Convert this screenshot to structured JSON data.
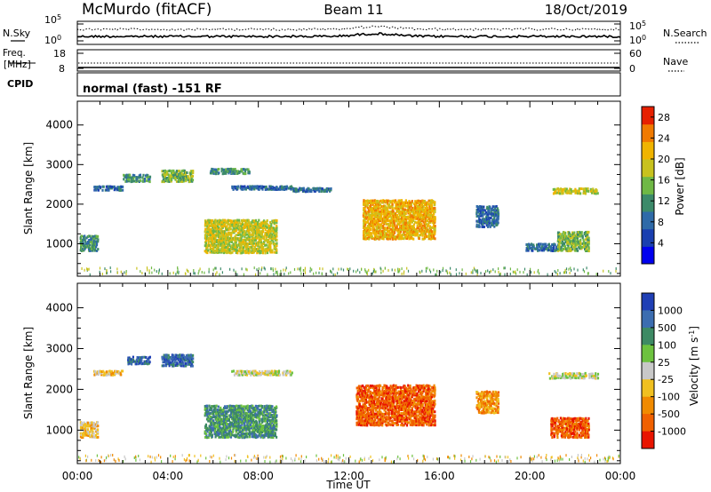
{
  "header": {
    "station": "McMurdo (fitACF)",
    "beam": "Beam 11",
    "date": "18/Oct/2019"
  },
  "noise_panel": {
    "left_label": "N.Sky",
    "right_label": "N.Search",
    "left_ticks": [
      "10^5",
      "10^0"
    ],
    "right_ticks": [
      "10^5",
      "10^0"
    ]
  },
  "freq_panel": {
    "left_label_line1": "Freq.",
    "left_label_line2": "[MHz]",
    "left_ticks": [
      "18",
      "8"
    ],
    "right_label": "Nave",
    "right_ticks": [
      "60",
      "0"
    ]
  },
  "cpid_panel": {
    "label": "CPID",
    "mode_text": "normal (fast) -151 RF"
  },
  "x_axis": {
    "label": "Time UT",
    "ticks": [
      "00:00",
      "04:00",
      "08:00",
      "12:00",
      "16:00",
      "20:00",
      "00:00"
    ]
  },
  "chart_data": [
    {
      "type": "heatmap",
      "name": "power",
      "ylabel": "Slant Range [km]",
      "yticks": [
        "1000",
        "2000",
        "3000",
        "4000"
      ],
      "ylim": [
        180,
        4600
      ],
      "xlim_hours": [
        0,
        24
      ],
      "colorbar": {
        "label": "Power [dB]",
        "ticks": [
          "4",
          "8",
          "12",
          "16",
          "20",
          "24",
          "28"
        ],
        "range": [
          0,
          30
        ],
        "colors": [
          "#0000ee",
          "#1a3fb0",
          "#2f6aa8",
          "#3c8a6a",
          "#6fb845",
          "#c8c21e",
          "#f0b400",
          "#f07a00",
          "#e62000"
        ]
      },
      "regions": [
        {
          "t": [
            0.1,
            0.9
          ],
          "r": [
            850,
            1250
          ],
          "level": 3
        },
        {
          "t": [
            0.7,
            2.0
          ],
          "r": [
            2380,
            2500
          ],
          "level": 2
        },
        {
          "t": [
            2.0,
            3.2
          ],
          "r": [
            2600,
            2800
          ],
          "level": 3
        },
        {
          "t": [
            3.7,
            5.1
          ],
          "r": [
            2600,
            2900
          ],
          "level": 4
        },
        {
          "t": [
            5.6,
            8.8
          ],
          "r": [
            800,
            1650
          ],
          "level": 5
        },
        {
          "t": [
            5.8,
            7.6
          ],
          "r": [
            2800,
            2950
          ],
          "level": 3
        },
        {
          "t": [
            6.8,
            9.5
          ],
          "r": [
            2400,
            2500
          ],
          "level": 2
        },
        {
          "t": [
            9.5,
            11.2
          ],
          "r": [
            2350,
            2450
          ],
          "level": 2
        },
        {
          "t": [
            12.6,
            15.8
          ],
          "r": [
            1150,
            2150
          ],
          "level": 6
        },
        {
          "t": [
            17.6,
            18.6
          ],
          "r": [
            1450,
            2000
          ],
          "level": 2
        },
        {
          "t": [
            19.8,
            21.2
          ],
          "r": [
            850,
            1050
          ],
          "level": 2
        },
        {
          "t": [
            21.0,
            23.0
          ],
          "r": [
            2300,
            2450
          ],
          "level": 5
        },
        {
          "t": [
            21.2,
            22.6
          ],
          "r": [
            850,
            1350
          ],
          "level": 4
        }
      ]
    },
    {
      "type": "heatmap",
      "name": "velocity",
      "ylabel": "Slant Range [km]",
      "yticks": [
        "1000",
        "2000",
        "3000",
        "4000"
      ],
      "ylim": [
        180,
        4600
      ],
      "xlim_hours": [
        0,
        24
      ],
      "colorbar": {
        "label": "Velocity [m s^-1]",
        "ticks": [
          "1000",
          "500",
          "100",
          "25",
          "-25",
          "-100",
          "-500",
          "-1000"
        ],
        "colors": [
          "#1f3fb5",
          "#3c6db0",
          "#3d8a64",
          "#6dc23f",
          "#c8c8c8",
          "#f0c020",
          "#f08a00",
          "#f06000",
          "#e81400"
        ]
      },
      "regions": [
        {
          "t": [
            0.1,
            0.9
          ],
          "r": [
            850,
            1250
          ],
          "level": 5
        },
        {
          "t": [
            0.7,
            2.0
          ],
          "r": [
            2380,
            2500
          ],
          "level": 5
        },
        {
          "t": [
            2.2,
            3.2
          ],
          "r": [
            2650,
            2850
          ],
          "level": 1
        },
        {
          "t": [
            3.7,
            5.1
          ],
          "r": [
            2600,
            2900
          ],
          "level": 1
        },
        {
          "t": [
            5.6,
            8.8
          ],
          "r": [
            850,
            1650
          ],
          "level": 2
        },
        {
          "t": [
            6.8,
            9.5
          ],
          "r": [
            2380,
            2500
          ],
          "level": 4
        },
        {
          "t": [
            12.3,
            15.8
          ],
          "r": [
            1150,
            2150
          ],
          "level": 7
        },
        {
          "t": [
            17.6,
            18.6
          ],
          "r": [
            1450,
            2000
          ],
          "level": 6
        },
        {
          "t": [
            20.8,
            23.0
          ],
          "r": [
            2300,
            2450
          ],
          "level": 4
        },
        {
          "t": [
            20.9,
            22.6
          ],
          "r": [
            850,
            1350
          ],
          "level": 7
        }
      ]
    }
  ]
}
